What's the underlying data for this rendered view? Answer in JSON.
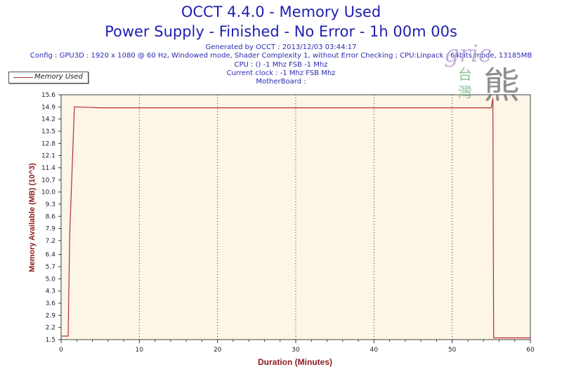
{
  "header": {
    "title_line1": "OCCT 4.4.0 - Memory Used",
    "title_line2": "Power Supply - Finished - No Error - 1h 00m 00s",
    "generated": "Generated by OCCT : 2013/12/03 03:44:17",
    "config": "Config : GPU3D : 1920 x 1080 @ 60 Hz, Windowed mode, Shader Complexity 1, without Error Checking ; CPU:Linpack : 64bits mode, 13185MB",
    "cpu": "CPU :  () -1 Mhz FSB -1 Mhz",
    "clock": "Current clock : -1 Mhz FSB  Mhz",
    "motherboard": "MotherBoard :"
  },
  "watermark": {
    "script_text": "gric",
    "cjk_small_1": "台",
    "cjk_small_2": "灣",
    "cjk_large": "熊"
  },
  "colors": {
    "series": "#b03030",
    "plot_background": "#fdf5e6",
    "title": "#1f1fb0",
    "axis_label": "#8b1a1a"
  },
  "chart_data": {
    "type": "line",
    "xlabel": "Duration (Minutes)",
    "ylabel": "Memory Available (MB) (10^3)",
    "xlim": [
      0,
      60
    ],
    "ylim": [
      1.5,
      15.6
    ],
    "x_ticks": [
      0,
      10,
      20,
      30,
      40,
      50,
      60
    ],
    "y_ticks": [
      1.5,
      2.2,
      2.9,
      3.6,
      4.3,
      5.0,
      5.7,
      6.4,
      7.2,
      7.9,
      8.6,
      9.3,
      10.0,
      10.7,
      11.4,
      12.1,
      12.8,
      13.5,
      14.2,
      14.9,
      15.6
    ],
    "grid": "vertical dotted",
    "legend_position": "top-left",
    "series": [
      {
        "name": "Memory Used",
        "x": [
          0,
          0.9,
          1.1,
          1.7,
          5,
          20,
          40,
          55,
          55.2,
          55.3,
          60
        ],
        "y": [
          1.7,
          1.7,
          7.5,
          14.9,
          14.85,
          14.85,
          14.85,
          14.85,
          15.4,
          1.6,
          1.6
        ]
      }
    ]
  }
}
